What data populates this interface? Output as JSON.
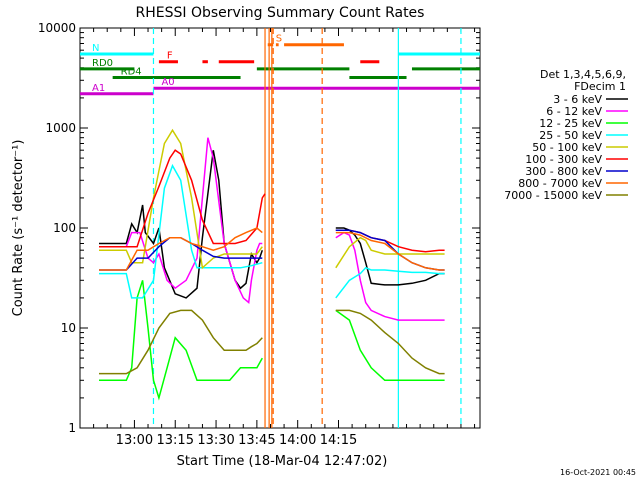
{
  "chart_data": {
    "type": "line",
    "title": "RHESSI Observing Summary Count Rates",
    "xlabel": "Start Time (18-Mar-04 12:47:02)",
    "ylabel": "Count Rate (s⁻¹ detector⁻¹)",
    "y_scale": "log",
    "ylim": [
      1,
      10000
    ],
    "xlim_minutes": [
      -7,
      140
    ],
    "x_tick_labels": [
      "13:00",
      "13:15",
      "13:30",
      "13:45",
      "14:00",
      "14:15"
    ],
    "x_tick_minutes": [
      13,
      28,
      43,
      58,
      73,
      88
    ],
    "y_tick_labels": [
      "1",
      "10",
      "100",
      "1000",
      "10000"
    ],
    "y_tick_values": [
      1,
      10,
      100,
      1000,
      10000
    ],
    "legend_header": [
      "Det 1,3,4,5,6,9,",
      "FDecim 1"
    ],
    "footer_date": "16-Oct-2021 00:45",
    "series": [
      {
        "name": "3 - 6 keV",
        "color": "#000000",
        "points": [
          [
            0,
            70
          ],
          [
            10,
            70
          ],
          [
            12,
            110
          ],
          [
            14,
            90
          ],
          [
            16,
            170
          ],
          [
            17,
            90
          ],
          [
            20,
            70
          ],
          [
            22,
            100
          ],
          [
            24,
            40
          ],
          [
            28,
            22
          ],
          [
            32,
            20
          ],
          [
            36,
            25
          ],
          [
            38,
            80
          ],
          [
            42,
            600
          ],
          [
            44,
            300
          ],
          [
            46,
            70
          ],
          [
            50,
            30
          ],
          [
            52,
            25
          ],
          [
            54,
            28
          ],
          [
            56,
            55
          ],
          [
            58,
            45
          ],
          [
            59,
            50
          ],
          [
            60,
            60
          ]
        ],
        "points2": [
          [
            87,
            100
          ],
          [
            90,
            100
          ],
          [
            92,
            95
          ],
          [
            94,
            85
          ],
          [
            96,
            70
          ],
          [
            98,
            45
          ],
          [
            100,
            28
          ],
          [
            105,
            27
          ],
          [
            110,
            27
          ],
          [
            115,
            28
          ],
          [
            120,
            30
          ],
          [
            125,
            35
          ],
          [
            127,
            35
          ]
        ]
      },
      {
        "name": "6 - 12 keV",
        "color": "#ff00ff",
        "points": [
          [
            0,
            65
          ],
          [
            10,
            65
          ],
          [
            12,
            90
          ],
          [
            15,
            90
          ],
          [
            18,
            50
          ],
          [
            20,
            45
          ],
          [
            22,
            55
          ],
          [
            25,
            30
          ],
          [
            28,
            25
          ],
          [
            32,
            30
          ],
          [
            36,
            50
          ],
          [
            38,
            200
          ],
          [
            40,
            800
          ],
          [
            42,
            500
          ],
          [
            46,
            70
          ],
          [
            50,
            30
          ],
          [
            53,
            20
          ],
          [
            55,
            18
          ],
          [
            56,
            30
          ],
          [
            58,
            60
          ],
          [
            59,
            70
          ],
          [
            60,
            70
          ]
        ],
        "points2": [
          [
            87,
            80
          ],
          [
            90,
            90
          ],
          [
            92,
            85
          ],
          [
            94,
            60
          ],
          [
            96,
            30
          ],
          [
            98,
            18
          ],
          [
            100,
            15
          ],
          [
            105,
            13
          ],
          [
            110,
            12
          ],
          [
            115,
            12
          ],
          [
            120,
            12
          ],
          [
            125,
            12
          ],
          [
            127,
            12
          ]
        ]
      },
      {
        "name": "12 - 25 keV",
        "color": "#00ff00",
        "points": [
          [
            0,
            3
          ],
          [
            10,
            3
          ],
          [
            12,
            4
          ],
          [
            14,
            20
          ],
          [
            16,
            30
          ],
          [
            18,
            10
          ],
          [
            20,
            3
          ],
          [
            22,
            2
          ],
          [
            25,
            4
          ],
          [
            28,
            8
          ],
          [
            32,
            6
          ],
          [
            36,
            3
          ],
          [
            40,
            3
          ],
          [
            44,
            3
          ],
          [
            48,
            3
          ],
          [
            52,
            4
          ],
          [
            56,
            4
          ],
          [
            58,
            4
          ],
          [
            60,
            5
          ]
        ],
        "points2": [
          [
            87,
            15
          ],
          [
            92,
            12
          ],
          [
            96,
            6
          ],
          [
            100,
            4
          ],
          [
            105,
            3
          ],
          [
            110,
            3
          ],
          [
            115,
            3
          ],
          [
            120,
            3
          ],
          [
            125,
            3
          ],
          [
            127,
            3
          ]
        ]
      },
      {
        "name": "25 - 50 keV",
        "color": "#00ffff",
        "points": [
          [
            0,
            35
          ],
          [
            10,
            35
          ],
          [
            12,
            20
          ],
          [
            16,
            20
          ],
          [
            20,
            30
          ],
          [
            24,
            250
          ],
          [
            27,
            420
          ],
          [
            30,
            300
          ],
          [
            34,
            60
          ],
          [
            36,
            40
          ],
          [
            40,
            40
          ],
          [
            44,
            40
          ],
          [
            48,
            40
          ],
          [
            52,
            40
          ],
          [
            56,
            42
          ],
          [
            60,
            45
          ]
        ],
        "points2": [
          [
            87,
            20
          ],
          [
            92,
            30
          ],
          [
            96,
            35
          ],
          [
            98,
            40
          ],
          [
            100,
            38
          ],
          [
            105,
            38
          ],
          [
            110,
            37
          ],
          [
            115,
            36
          ],
          [
            120,
            36
          ],
          [
            125,
            35
          ],
          [
            127,
            35
          ]
        ]
      },
      {
        "name": "50 - 100 keV",
        "color": "#cccc00",
        "points": [
          [
            0,
            60
          ],
          [
            10,
            60
          ],
          [
            12,
            45
          ],
          [
            16,
            45
          ],
          [
            20,
            200
          ],
          [
            24,
            700
          ],
          [
            27,
            950
          ],
          [
            30,
            700
          ],
          [
            34,
            200
          ],
          [
            38,
            40
          ],
          [
            42,
            50
          ],
          [
            46,
            55
          ],
          [
            50,
            55
          ],
          [
            54,
            55
          ],
          [
            58,
            55
          ],
          [
            60,
            65
          ]
        ],
        "points2": [
          [
            87,
            40
          ],
          [
            92,
            65
          ],
          [
            96,
            80
          ],
          [
            98,
            75
          ],
          [
            100,
            60
          ],
          [
            105,
            55
          ],
          [
            110,
            55
          ],
          [
            115,
            55
          ],
          [
            120,
            55
          ],
          [
            125,
            55
          ],
          [
            127,
            55
          ]
        ]
      },
      {
        "name": "100 - 300 keV",
        "color": "#ff0000",
        "points": [
          [
            0,
            65
          ],
          [
            10,
            65
          ],
          [
            14,
            65
          ],
          [
            18,
            140
          ],
          [
            22,
            260
          ],
          [
            26,
            500
          ],
          [
            28,
            600
          ],
          [
            30,
            550
          ],
          [
            34,
            300
          ],
          [
            38,
            120
          ],
          [
            42,
            70
          ],
          [
            46,
            70
          ],
          [
            50,
            70
          ],
          [
            54,
            75
          ],
          [
            58,
            100
          ],
          [
            60,
            200
          ],
          [
            61,
            220
          ]
        ],
        "points2": [
          [
            87,
            95
          ],
          [
            92,
            95
          ],
          [
            96,
            90
          ],
          [
            100,
            80
          ],
          [
            105,
            75
          ],
          [
            110,
            65
          ],
          [
            115,
            60
          ],
          [
            120,
            58
          ],
          [
            125,
            60
          ],
          [
            127,
            60
          ]
        ]
      },
      {
        "name": "300 - 800 keV",
        "color": "#0000cc",
        "points": [
          [
            0,
            38
          ],
          [
            10,
            38
          ],
          [
            14,
            50
          ],
          [
            18,
            50
          ],
          [
            22,
            65
          ],
          [
            26,
            80
          ],
          [
            30,
            80
          ],
          [
            34,
            70
          ],
          [
            38,
            60
          ],
          [
            42,
            52
          ],
          [
            46,
            50
          ],
          [
            50,
            50
          ],
          [
            54,
            50
          ],
          [
            58,
            50
          ],
          [
            60,
            50
          ]
        ],
        "points2": [
          [
            87,
            95
          ],
          [
            92,
            95
          ],
          [
            96,
            90
          ],
          [
            100,
            80
          ],
          [
            105,
            75
          ],
          [
            110,
            55
          ],
          [
            115,
            45
          ],
          [
            120,
            40
          ],
          [
            125,
            38
          ],
          [
            127,
            38
          ]
        ]
      },
      {
        "name": "800 - 7000 keV",
        "color": "#ff6600",
        "points": [
          [
            0,
            38
          ],
          [
            10,
            38
          ],
          [
            14,
            60
          ],
          [
            18,
            60
          ],
          [
            22,
            70
          ],
          [
            26,
            80
          ],
          [
            30,
            80
          ],
          [
            34,
            70
          ],
          [
            38,
            65
          ],
          [
            42,
            60
          ],
          [
            46,
            65
          ],
          [
            50,
            80
          ],
          [
            54,
            90
          ],
          [
            58,
            100
          ],
          [
            60,
            90
          ]
        ],
        "points2": [
          [
            87,
            90
          ],
          [
            92,
            90
          ],
          [
            96,
            85
          ],
          [
            100,
            75
          ],
          [
            105,
            70
          ],
          [
            110,
            55
          ],
          [
            115,
            45
          ],
          [
            120,
            40
          ],
          [
            125,
            38
          ],
          [
            127,
            38
          ]
        ]
      },
      {
        "name": "7000 - 15000 keV",
        "color": "#808000",
        "points": [
          [
            0,
            3.5
          ],
          [
            10,
            3.5
          ],
          [
            14,
            4
          ],
          [
            18,
            6
          ],
          [
            22,
            10
          ],
          [
            26,
            14
          ],
          [
            30,
            15
          ],
          [
            34,
            15
          ],
          [
            38,
            12
          ],
          [
            42,
            8
          ],
          [
            46,
            6
          ],
          [
            50,
            6
          ],
          [
            54,
            6
          ],
          [
            56,
            6.5
          ],
          [
            58,
            7
          ],
          [
            60,
            8
          ]
        ],
        "points2": [
          [
            87,
            15
          ],
          [
            92,
            15
          ],
          [
            96,
            14
          ],
          [
            100,
            12
          ],
          [
            105,
            9
          ],
          [
            110,
            7
          ],
          [
            115,
            5
          ],
          [
            120,
            4
          ],
          [
            125,
            3.5
          ],
          [
            127,
            3.5
          ]
        ]
      }
    ],
    "state_bars": [
      {
        "label": "N",
        "color": "#00ffff",
        "level": 5500,
        "segments": [
          [
            -7,
            20
          ],
          [
            110,
            140
          ]
        ]
      },
      {
        "label": "F",
        "color": "#ff0000",
        "level": 4600,
        "segments": [
          [
            22,
            29
          ],
          [
            38,
            40
          ],
          [
            44,
            57
          ],
          [
            96,
            103
          ]
        ]
      },
      {
        "label": "S",
        "color": "#ff6600",
        "level": 6800,
        "segments": [
          [
            62,
            64
          ],
          [
            65,
            66
          ],
          [
            68,
            90
          ]
        ]
      },
      {
        "label": "RD0",
        "color": "#008000",
        "level": 3900,
        "segments": [
          [
            -7,
            13
          ],
          [
            58,
            92
          ],
          [
            115,
            140
          ]
        ]
      },
      {
        "label": "RD4",
        "color": "#008000",
        "level": 3200,
        "segments": [
          [
            5,
            52
          ],
          [
            92,
            113
          ]
        ]
      },
      {
        "label": "A0",
        "color": "#cc00cc",
        "level": 2500,
        "segments": [
          [
            20,
            140
          ]
        ]
      },
      {
        "label": "A1",
        "color": "#cc00cc",
        "level": 2200,
        "segments": [
          [
            -7,
            20
          ]
        ]
      }
    ],
    "vertical_markers": [
      {
        "minute": 20,
        "color": "#00ffff",
        "dashed": true
      },
      {
        "minute": 61,
        "color": "#ff6600",
        "dashed": false
      },
      {
        "minute": 62.5,
        "color": "#ff6600",
        "dashed": false
      },
      {
        "minute": 63.5,
        "color": "#ff6600",
        "dashed": false
      },
      {
        "minute": 64,
        "color": "#ff6600",
        "dashed": true
      },
      {
        "minute": 82,
        "color": "#ff6600",
        "dashed": true
      },
      {
        "minute": 110,
        "color": "#00ffff",
        "dashed": false
      },
      {
        "minute": 133,
        "color": "#00ffff",
        "dashed": true
      }
    ]
  }
}
